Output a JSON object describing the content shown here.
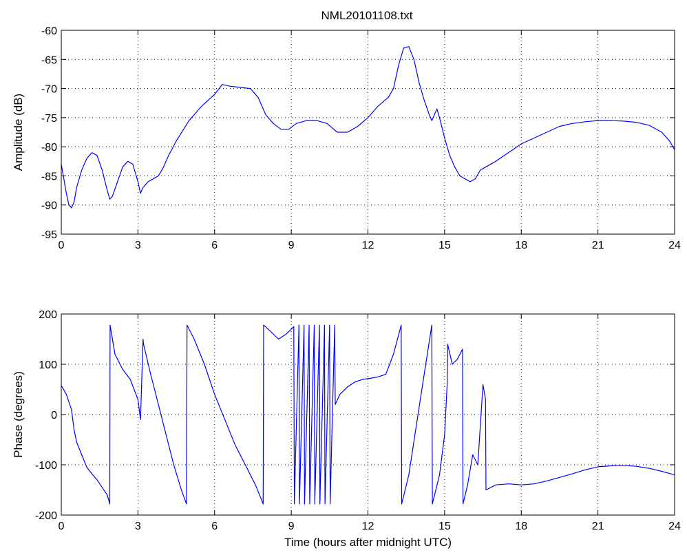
{
  "window": {
    "title": "NML20101108.txt"
  },
  "chart_data": [
    {
      "type": "line",
      "title": "NML20101108.txt",
      "xlabel": "",
      "ylabel": "Amplitude (dB)",
      "xlim": [
        0,
        24
      ],
      "ylim": [
        -95,
        -60
      ],
      "xticks": [
        0,
        3,
        6,
        9,
        12,
        15,
        18,
        21,
        24
      ],
      "yticks": [
        -95,
        -90,
        -85,
        -80,
        -75,
        -70,
        -65,
        -60
      ],
      "grid": true,
      "color": "#0000ff",
      "series": [
        {
          "x": [
            0,
            0.1,
            0.2,
            0.3,
            0.4,
            0.5,
            0.6,
            0.8,
            1.0,
            1.2,
            1.4,
            1.6,
            1.8,
            1.9,
            2.0,
            2.2,
            2.4,
            2.6,
            2.8,
            3.0,
            3.1,
            3.2,
            3.4,
            3.6,
            3.8,
            4.0,
            4.2,
            4.5,
            5.0,
            5.5,
            6.0,
            6.3,
            6.6,
            7.0,
            7.4,
            7.7,
            8.0,
            8.3,
            8.6,
            8.9,
            9.2,
            9.6,
            10.0,
            10.4,
            10.8,
            11.2,
            11.6,
            12.0,
            12.4,
            12.8,
            13.0,
            13.2,
            13.4,
            13.6,
            13.8,
            14.0,
            14.2,
            14.4,
            14.5,
            14.6,
            14.7,
            14.8,
            15.0,
            15.2,
            15.4,
            15.6,
            15.8,
            16.0,
            16.2,
            16.4,
            16.6,
            17.0,
            17.5,
            18.0,
            18.5,
            19.0,
            19.5,
            20.0,
            20.5,
            21.0,
            21.5,
            22.0,
            22.5,
            23.0,
            23.5,
            23.8,
            24.0
          ],
          "y": [
            -83,
            -85.5,
            -88,
            -90,
            -90.5,
            -89.5,
            -87,
            -84,
            -82,
            -81,
            -81.5,
            -84,
            -87.5,
            -89,
            -88.5,
            -86,
            -83.5,
            -82.5,
            -83,
            -86,
            -88,
            -87,
            -86,
            -85.5,
            -85,
            -83.5,
            -81.5,
            -79,
            -75.5,
            -73,
            -71,
            -69.3,
            -69.6,
            -69.8,
            -70,
            -71.5,
            -74.5,
            -76,
            -77,
            -77,
            -76,
            -75.5,
            -75.5,
            -76,
            -77.5,
            -77.5,
            -76.5,
            -75,
            -73,
            -71.5,
            -70,
            -66,
            -63,
            -62.8,
            -65,
            -69,
            -72,
            -74.5,
            -75.5,
            -74.5,
            -73.5,
            -75,
            -78.5,
            -81.5,
            -83.5,
            -85,
            -85.5,
            -86,
            -85.5,
            -84,
            -83.5,
            -82.5,
            -81,
            -79.5,
            -78.5,
            -77.5,
            -76.5,
            -76,
            -75.7,
            -75.5,
            -75.5,
            -75.6,
            -75.8,
            -76.3,
            -77.5,
            -79,
            -80.5
          ]
        }
      ]
    },
    {
      "type": "line",
      "title": "",
      "xlabel": "Time (hours after midnight UTC)",
      "ylabel": "Phase (degrees)",
      "xlim": [
        0,
        24
      ],
      "ylim": [
        -200,
        200
      ],
      "xticks": [
        0,
        3,
        6,
        9,
        12,
        15,
        18,
        21,
        24
      ],
      "yticks": [
        -200,
        -100,
        0,
        100,
        200
      ],
      "grid": true,
      "color": "#0000ff",
      "series": [
        {
          "x": [
            0,
            0.2,
            0.4,
            0.5,
            0.6,
            0.8,
            1.0,
            1.2,
            1.4,
            1.6,
            1.8,
            1.9,
            1.91,
            2.1,
            2.4,
            2.7,
            3.0,
            3.1,
            3.2,
            3.22,
            3.5,
            3.8,
            4.1,
            4.4,
            4.7,
            4.9,
            4.92,
            5.2,
            5.6,
            6.0,
            6.4,
            6.8,
            7.2,
            7.6,
            7.9,
            7.92,
            8.2,
            8.5,
            8.8,
            9.0,
            9.1,
            9.12,
            9.3,
            9.32,
            9.5,
            9.52,
            9.7,
            9.72,
            9.9,
            9.92,
            10.1,
            10.12,
            10.3,
            10.32,
            10.5,
            10.52,
            10.7,
            10.72,
            10.9,
            11.2,
            11.5,
            11.8,
            12.1,
            12.4,
            12.7,
            13.0,
            13.3,
            13.32,
            13.6,
            13.9,
            14.2,
            14.5,
            14.52,
            14.8,
            15.0,
            15.1,
            15.12,
            15.3,
            15.5,
            15.7,
            15.72,
            15.9,
            16.1,
            16.3,
            16.5,
            16.6,
            16.62,
            17.0,
            17.5,
            18.0,
            18.5,
            19.0,
            19.5,
            20.0,
            20.5,
            21.0,
            21.5,
            22.0,
            22.5,
            23.0,
            23.5,
            24.0
          ],
          "y": [
            58,
            40,
            10,
            -30,
            -55,
            -80,
            -105,
            -118,
            -130,
            -145,
            -160,
            -178,
            178,
            120,
            90,
            70,
            30,
            -10,
            150,
            140,
            80,
            20,
            -40,
            -100,
            -150,
            -178,
            178,
            150,
            100,
            40,
            -10,
            -60,
            -100,
            -140,
            -178,
            178,
            165,
            150,
            160,
            170,
            175,
            -178,
            178,
            -178,
            178,
            -178,
            178,
            -178,
            178,
            -178,
            178,
            -178,
            178,
            -178,
            178,
            -178,
            178,
            20,
            40,
            55,
            65,
            70,
            72,
            75,
            80,
            120,
            178,
            -178,
            -120,
            -20,
            80,
            178,
            -178,
            -120,
            -40,
            60,
            140,
            100,
            110,
            130,
            -178,
            -140,
            -80,
            -100,
            60,
            30,
            -150,
            -140,
            -138,
            -140,
            -138,
            -132,
            -125,
            -118,
            -110,
            -104,
            -102,
            -101,
            -103,
            -107,
            -113,
            -120
          ]
        }
      ]
    }
  ]
}
